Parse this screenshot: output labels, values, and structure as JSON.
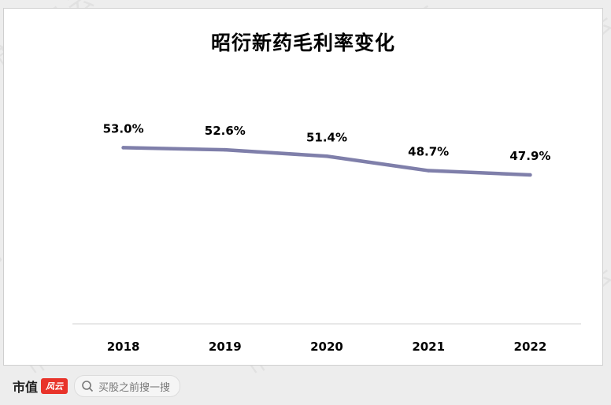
{
  "chart_data": {
    "type": "line",
    "title": "昭衍新药毛利率变化",
    "categories": [
      "2018",
      "2019",
      "2020",
      "2021",
      "2022"
    ],
    "series": [
      {
        "values": [
          53.0,
          52.6,
          51.4,
          48.7,
          47.9
        ],
        "labels": [
          "53.0%",
          "52.6%",
          "51.4%",
          "48.7%",
          "47.9%"
        ]
      }
    ],
    "ylim": [
      20,
      60
    ],
    "grid": false,
    "line_color": "#7f7faa"
  },
  "watermark": "市值风云",
  "footer": {
    "brand": "市值",
    "brand_mark": "风云",
    "search_text": "买股之前搜一搜"
  }
}
